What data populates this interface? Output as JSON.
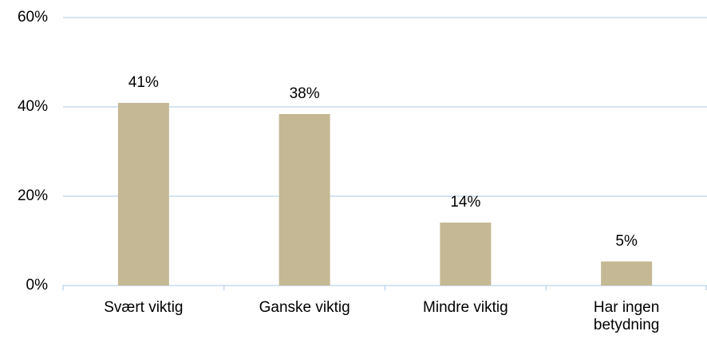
{
  "chart_data": {
    "type": "bar",
    "categories": [
      "Svært viktig",
      "Ganske viktig",
      "Mindre viktig",
      "Har ingen betydning"
    ],
    "values": [
      40.9,
      38.4,
      14.1,
      5.4
    ],
    "value_labels": [
      "41%",
      "38%",
      "14%",
      "5%"
    ],
    "color": "#c4b994",
    "ylim": [
      0,
      60
    ],
    "yticks": [
      {
        "value": 0,
        "label": "0%"
      },
      {
        "value": 20,
        "label": "20%"
      },
      {
        "value": 40,
        "label": "40%"
      },
      {
        "value": 60,
        "label": "60%"
      }
    ],
    "grid": true
  }
}
